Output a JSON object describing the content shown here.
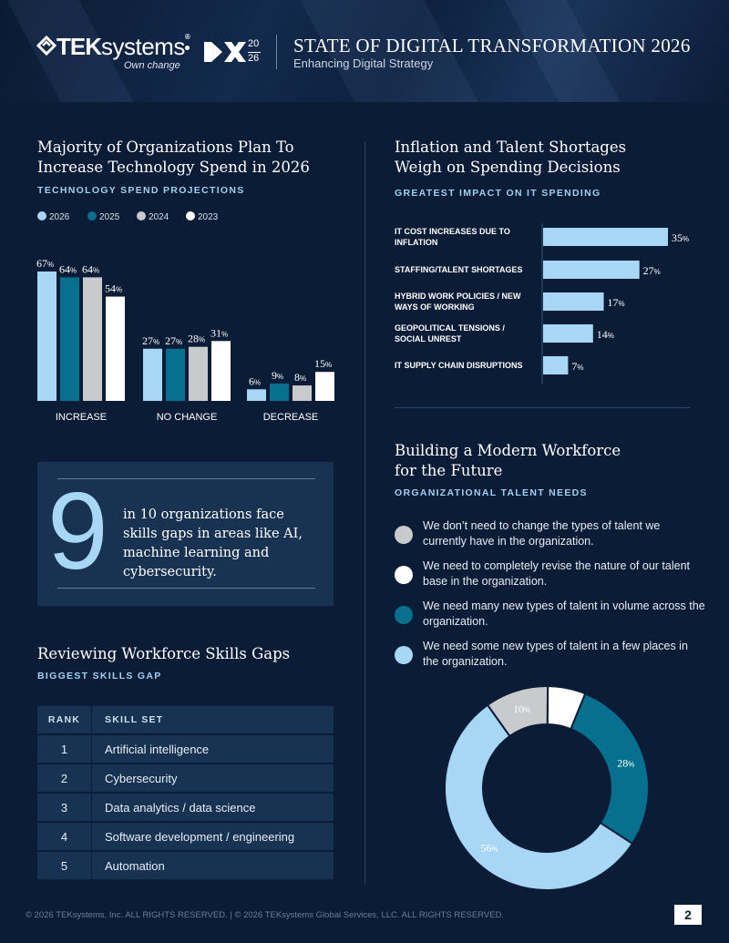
{
  "header": {
    "brand_bold": "TEK",
    "brand_light": "systems",
    "brand_tm": "®",
    "tagline": "Own change",
    "dx_year_top": "20",
    "dx_year_bottom": "26",
    "title": "STATE OF DIGITAL TRANSFORMATION 2026",
    "subtitle": "Enhancing Digital Strategy"
  },
  "colors": {
    "c2026": "#a8d7f5",
    "c2025": "#06708e",
    "c2024": "#c9cacc",
    "c2023": "#ffffff",
    "background": "#0b1c36",
    "panel": "#183352"
  },
  "spend": {
    "title_line1": "Majority of Organizations Plan To",
    "title_line2": "Increase Technology Spend in 2026",
    "subtitle": "TECHNOLOGY SPEND PROJECTIONS"
  },
  "impact": {
    "title_line1": "Inflation and Talent Shortages",
    "title_line2": "Weigh on Spending Decisions",
    "subtitle": "GREATEST IMPACT ON IT SPENDING"
  },
  "stat": {
    "number": "9",
    "text": "in 10 organizations face skills gaps in areas like AI, machine learning and cybersecurity."
  },
  "skills": {
    "title": "Reviewing Workforce Skills Gaps",
    "subtitle": "BIGGEST SKILLS GAP",
    "col_rank": "RANK",
    "col_skill": "SKILL SET",
    "rows": [
      {
        "rank": "1",
        "skill": "Artificial intelligence"
      },
      {
        "rank": "2",
        "skill": "Cybersecurity"
      },
      {
        "rank": "3",
        "skill": "Data analytics / data science"
      },
      {
        "rank": "4",
        "skill": "Software development / engineering"
      },
      {
        "rank": "5",
        "skill": "Automation"
      }
    ]
  },
  "workforce": {
    "title_line1": "Building a Modern Workforce",
    "title_line2": "for the Future",
    "subtitle": "ORGANIZATIONAL TALENT NEEDS",
    "items": [
      {
        "text": "We don’t need to change the types of talent we currently have in the organization.",
        "color": "#c9cacc"
      },
      {
        "text": "We need to completely revise the nature of our talent base in the organization.",
        "color": "#ffffff"
      },
      {
        "text": "We need many new types of talent in volume across the organization.",
        "color": "#06708e"
      },
      {
        "text": "We need some new types of talent in a few places in the organization.",
        "color": "#a8d7f5"
      }
    ]
  },
  "footer": {
    "text": "© 2026 TEKsystems, Inc. ALL RIGHTS RESERVED.   |   © 2026 TEKsystems Global Services, LLC. ALL RIGHTS RESERVED.",
    "page": "2"
  },
  "chart_data": [
    {
      "type": "bar",
      "title": "Majority of Organizations Plan To Increase Technology Spend in 2026",
      "subtitle": "TECHNOLOGY SPEND PROJECTIONS",
      "categories": [
        "INCREASE",
        "NO CHANGE",
        "DECREASE"
      ],
      "series": [
        {
          "name": "2026",
          "values": [
            67,
            27,
            6
          ],
          "color": "#a8d7f5"
        },
        {
          "name": "2025",
          "values": [
            64,
            27,
            9
          ],
          "color": "#06708e"
        },
        {
          "name": "2024",
          "values": [
            64,
            28,
            8
          ],
          "color": "#c9cacc"
        },
        {
          "name": "2023",
          "values": [
            54,
            31,
            15
          ],
          "color": "#ffffff"
        }
      ],
      "unit": "%",
      "ylim": [
        0,
        70
      ],
      "legend": "top-left",
      "grid": false
    },
    {
      "type": "bar",
      "orientation": "horizontal",
      "title": "Inflation and Talent Shortages Weigh on Spending Decisions",
      "subtitle": "GREATEST IMPACT ON IT SPENDING",
      "categories": [
        "IT COST INCREASES DUE TO INFLATION",
        "STAFFING/TALENT SHORTAGES",
        "HYBRID WORK POLICIES / NEW WAYS OF WORKING",
        "GEOPOLITICAL TENSIONS / SOCIAL UNREST",
        "IT SUPPLY CHAIN DISRUPTIONS"
      ],
      "values": [
        35,
        27,
        17,
        14,
        7
      ],
      "unit": "%",
      "xlim": [
        0,
        35
      ],
      "color": "#a8d7f5",
      "grid": false
    },
    {
      "type": "pie",
      "donut": true,
      "title": "Building a Modern Workforce for the Future",
      "subtitle": "ORGANIZATIONAL TALENT NEEDS",
      "slices": [
        {
          "label": "We need completely revise the nature of our talent base in the organization.",
          "value": 6,
          "color": "#ffffff"
        },
        {
          "label": "We need many new types of talent in volume across the organization.",
          "value": 28,
          "color": "#06708e"
        },
        {
          "label": "We need some new types of talent in a few places in the organization.",
          "value": 56,
          "color": "#a8d7f5"
        },
        {
          "label": "We don’t need to change the types of talent we currently have in the organization.",
          "value": 10,
          "color": "#c9cacc"
        }
      ],
      "unit": "%"
    }
  ]
}
